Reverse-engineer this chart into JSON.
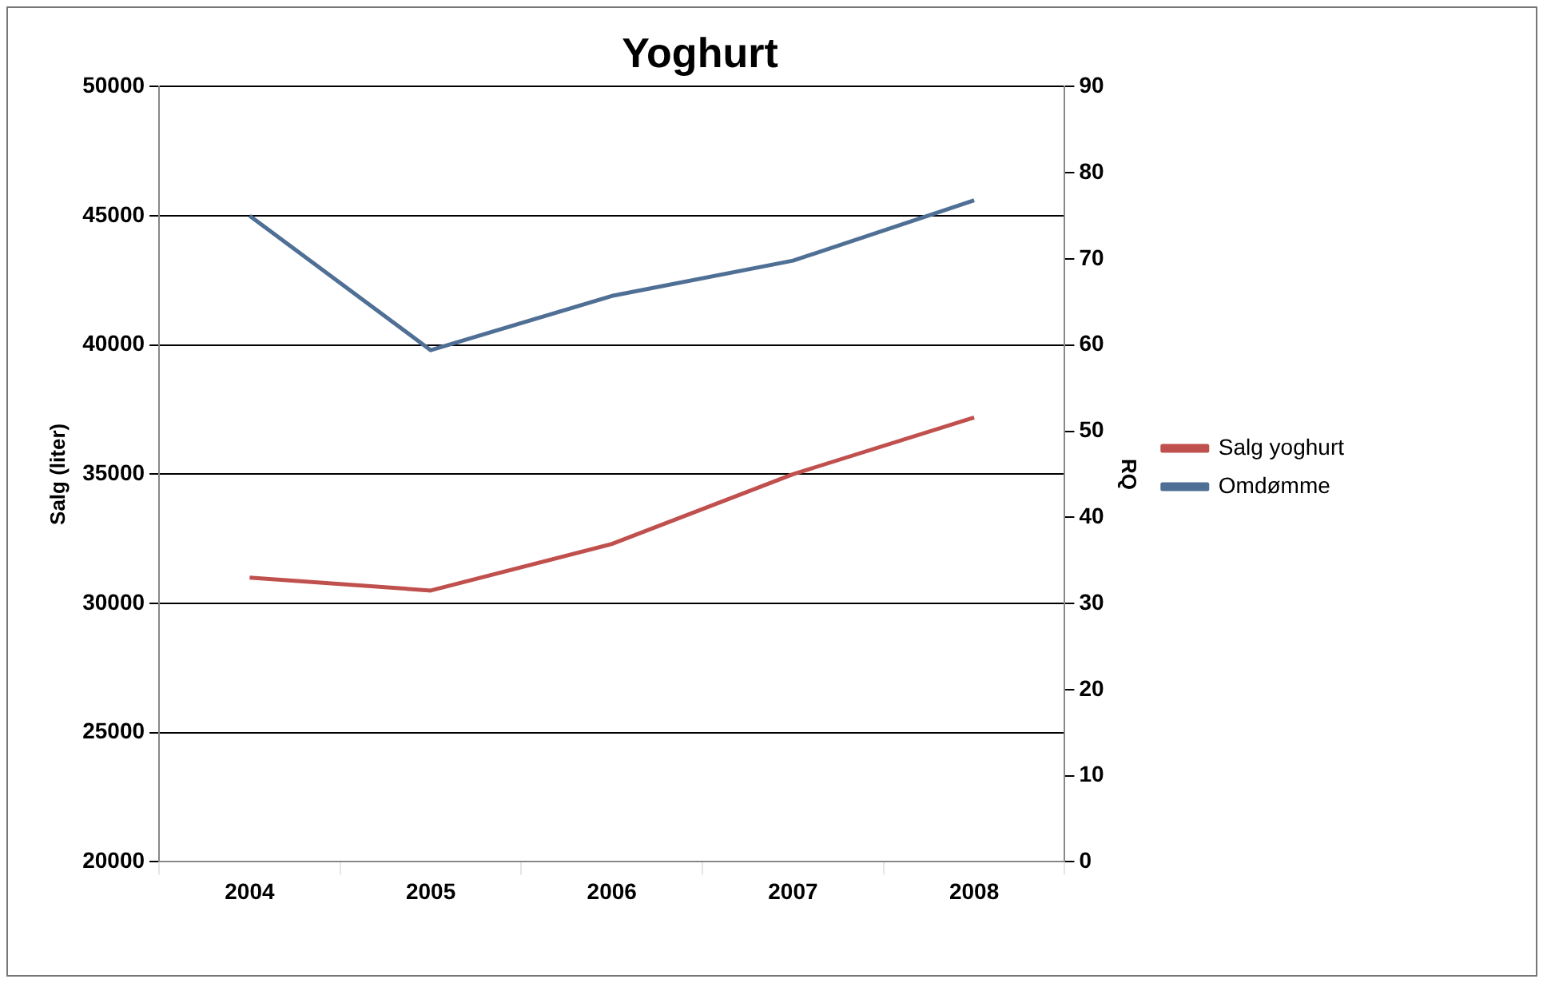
{
  "chart_data": {
    "type": "line",
    "title": "Yoghurt",
    "ylabel": "Salg (liter)",
    "y2label": "RQ",
    "categories": [
      "2004",
      "2005",
      "2006",
      "2007",
      "2008"
    ],
    "series": [
      {
        "name": "Salg yoghurt",
        "color": "#c0504d",
        "values": [
          31000,
          30500,
          32300,
          35000,
          37200
        ]
      },
      {
        "name": "Omdømme",
        "color": "#4f6f95",
        "axis": "y2",
        "values": [
          75,
          59.4,
          65.7,
          69.8,
          76.8
        ]
      }
    ],
    "ylim": [
      20000,
      50000
    ],
    "yticks": [
      20000,
      25000,
      30000,
      35000,
      40000,
      45000,
      50000
    ],
    "y2lim": [
      0,
      90
    ],
    "y2ticks": [
      0,
      10,
      20,
      30,
      40,
      50,
      60,
      70,
      80,
      90
    ],
    "grid": "y",
    "legend": "right",
    "marker": "none",
    "line_style": "solid"
  }
}
